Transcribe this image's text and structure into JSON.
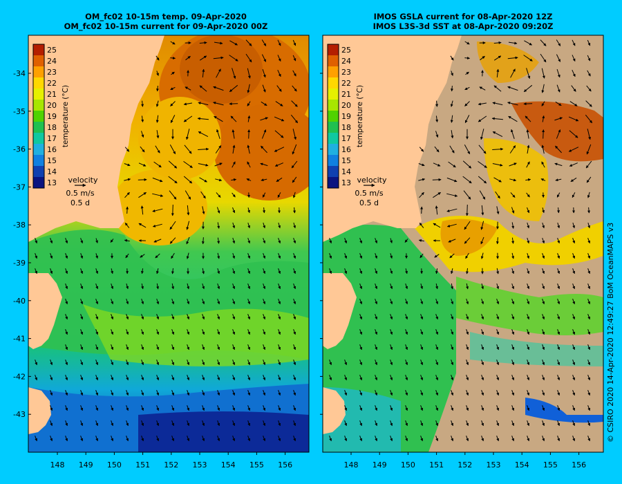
{
  "panels": [
    {
      "id": "left",
      "title_line1": "OM_fc02 10-15m temp. 09-Apr-2020",
      "title_line2": "OM_fc02 10-15m current for 09-Apr-2020 00Z"
    },
    {
      "id": "right",
      "title_line1": "IMOS GSLA current for 08-Apr-2020 12Z",
      "title_line2": "IMOS L3S-3d SST at 08-Apr-2020 09:20Z"
    }
  ],
  "colorbar": {
    "label": "temperature (°C)",
    "ticks": [
      "25",
      "24",
      "23",
      "22",
      "21",
      "20",
      "19",
      "18",
      "17",
      "16",
      "15",
      "14",
      "13"
    ],
    "colors": [
      "#b41e00",
      "#e06000",
      "#ffa000",
      "#ffd800",
      "#e6f000",
      "#a8e600",
      "#50d200",
      "#20c050",
      "#10c8a0",
      "#20b0e0",
      "#1080e0",
      "#1040b0",
      "#0a1480"
    ]
  },
  "velocity_legend": {
    "label": "velocity",
    "speed": "0.5 m/s",
    "duration": "0.5 d"
  },
  "axes": {
    "lat_ticks": [
      "-34",
      "-35",
      "-36",
      "-37",
      "-38",
      "-39",
      "-40",
      "-41",
      "-42",
      "-43"
    ],
    "lon_ticks": [
      "148",
      "149",
      "150",
      "151",
      "152",
      "153",
      "154",
      "155",
      "156"
    ]
  },
  "colors": {
    "background": "#00ccff",
    "land": "#ffc896",
    "no_data": "#c8a882"
  },
  "credit": "© CSIRO 2020   14-Apr-2020 12:49:27 BoM OceanMAPS v3"
}
